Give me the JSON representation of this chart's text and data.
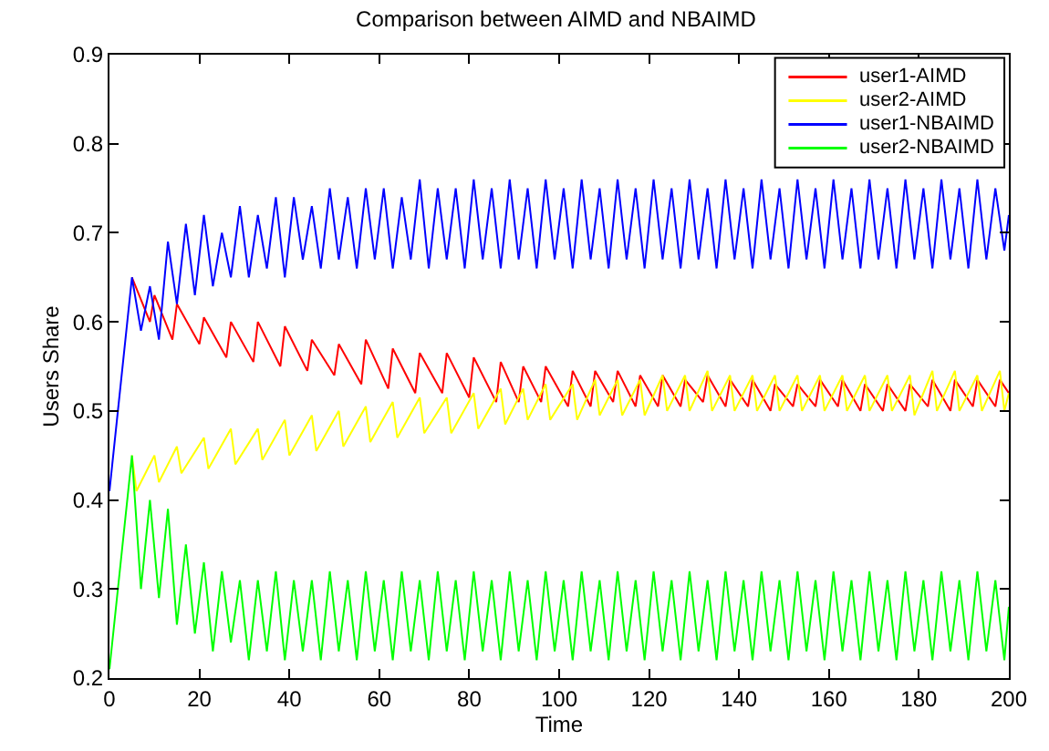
{
  "chart_data": {
    "type": "line",
    "title": "Comparison between AIMD and NBAIMD",
    "xlabel": "Time",
    "ylabel": "Users Share",
    "xlim": [
      0,
      200
    ],
    "xticks": [
      0,
      20,
      40,
      60,
      80,
      100,
      120,
      140,
      160,
      180,
      200
    ],
    "ylim": [
      0.2,
      0.9
    ],
    "yticks": [
      0.2,
      0.3,
      0.4,
      0.5,
      0.6,
      0.7,
      0.8,
      0.9
    ],
    "grid": false,
    "legend": "top right",
    "marker": "none",
    "line_style": "solid",
    "series": [
      {
        "name": "user1-AIMD",
        "color": "#ff0000",
        "x": [
          5,
          9,
          10,
          14,
          15,
          20,
          21,
          26,
          27,
          32,
          33,
          38,
          39,
          44,
          45,
          50,
          51,
          56,
          57,
          62,
          63,
          68,
          69,
          74,
          75,
          80,
          81,
          86,
          87,
          91,
          92,
          96,
          97,
          102,
          103,
          107,
          108,
          112,
          113,
          117,
          118,
          122,
          123,
          127,
          128,
          132,
          133,
          137,
          138,
          142,
          143,
          147,
          148,
          152,
          153,
          157,
          158,
          162,
          163,
          167,
          168,
          172,
          173,
          177,
          178,
          182,
          183,
          187,
          188,
          192,
          193,
          197,
          198,
          200
        ],
        "values": [
          0.65,
          0.6,
          0.63,
          0.58,
          0.62,
          0.575,
          0.605,
          0.56,
          0.6,
          0.555,
          0.6,
          0.55,
          0.595,
          0.545,
          0.58,
          0.54,
          0.575,
          0.53,
          0.58,
          0.525,
          0.57,
          0.52,
          0.565,
          0.52,
          0.565,
          0.515,
          0.56,
          0.51,
          0.555,
          0.51,
          0.55,
          0.51,
          0.55,
          0.505,
          0.545,
          0.505,
          0.545,
          0.51,
          0.545,
          0.505,
          0.54,
          0.505,
          0.54,
          0.505,
          0.535,
          0.51,
          0.54,
          0.505,
          0.535,
          0.505,
          0.535,
          0.5,
          0.53,
          0.505,
          0.53,
          0.505,
          0.535,
          0.505,
          0.535,
          0.5,
          0.53,
          0.5,
          0.53,
          0.5,
          0.53,
          0.505,
          0.535,
          0.5,
          0.535,
          0.505,
          0.535,
          0.505,
          0.535,
          0.52
        ]
      },
      {
        "name": "user2-AIMD",
        "color": "#ffff00",
        "x": [
          5,
          6,
          10,
          11,
          15,
          16,
          21,
          22,
          27,
          28,
          33,
          34,
          39,
          40,
          45,
          46,
          51,
          52,
          57,
          58,
          63,
          64,
          69,
          70,
          75,
          76,
          81,
          82,
          87,
          88,
          92,
          93,
          97,
          98,
          103,
          104,
          108,
          109,
          113,
          114,
          118,
          119,
          123,
          124,
          128,
          129,
          133,
          134,
          138,
          139,
          143,
          144,
          148,
          149,
          153,
          154,
          158,
          159,
          163,
          164,
          168,
          169,
          173,
          174,
          178,
          179,
          183,
          184,
          188,
          189,
          193,
          194,
          198,
          199,
          200
        ],
        "values": [
          0.45,
          0.41,
          0.45,
          0.42,
          0.46,
          0.43,
          0.47,
          0.435,
          0.48,
          0.44,
          0.48,
          0.445,
          0.49,
          0.45,
          0.495,
          0.455,
          0.5,
          0.46,
          0.505,
          0.465,
          0.51,
          0.47,
          0.515,
          0.475,
          0.515,
          0.475,
          0.52,
          0.48,
          0.525,
          0.485,
          0.525,
          0.49,
          0.53,
          0.49,
          0.53,
          0.49,
          0.535,
          0.495,
          0.535,
          0.495,
          0.535,
          0.495,
          0.54,
          0.5,
          0.54,
          0.5,
          0.545,
          0.5,
          0.54,
          0.5,
          0.54,
          0.5,
          0.54,
          0.5,
          0.54,
          0.5,
          0.54,
          0.5,
          0.54,
          0.5,
          0.54,
          0.5,
          0.54,
          0.5,
          0.54,
          0.495,
          0.545,
          0.5,
          0.545,
          0.5,
          0.54,
          0.5,
          0.545,
          0.5,
          0.52
        ]
      },
      {
        "name": "user1-NBAIMD",
        "color": "#0000ff",
        "x": [
          0,
          5,
          7,
          9,
          11,
          13,
          15,
          17,
          19,
          21,
          23,
          25,
          27,
          29,
          31,
          33,
          35,
          37,
          39,
          41,
          43,
          45,
          47,
          49,
          51,
          53,
          55,
          57,
          59,
          61,
          63,
          65,
          67,
          69,
          71,
          73,
          75,
          77,
          79,
          81,
          83,
          85,
          87,
          89,
          91,
          93,
          95,
          97,
          99,
          101,
          103,
          105,
          107,
          109,
          111,
          113,
          115,
          117,
          119,
          121,
          123,
          125,
          127,
          129,
          131,
          133,
          135,
          137,
          139,
          141,
          143,
          145,
          147,
          149,
          151,
          153,
          155,
          157,
          159,
          161,
          163,
          165,
          167,
          169,
          171,
          173,
          175,
          177,
          179,
          181,
          183,
          185,
          187,
          189,
          191,
          193,
          195,
          197,
          199,
          200
        ],
        "values": [
          0.41,
          0.65,
          0.59,
          0.64,
          0.58,
          0.69,
          0.62,
          0.71,
          0.63,
          0.72,
          0.64,
          0.7,
          0.65,
          0.73,
          0.65,
          0.72,
          0.66,
          0.74,
          0.65,
          0.74,
          0.67,
          0.73,
          0.66,
          0.75,
          0.67,
          0.74,
          0.66,
          0.75,
          0.67,
          0.75,
          0.66,
          0.74,
          0.67,
          0.76,
          0.66,
          0.75,
          0.67,
          0.75,
          0.66,
          0.76,
          0.67,
          0.75,
          0.66,
          0.76,
          0.67,
          0.75,
          0.66,
          0.76,
          0.67,
          0.75,
          0.66,
          0.76,
          0.67,
          0.75,
          0.66,
          0.76,
          0.67,
          0.75,
          0.66,
          0.76,
          0.67,
          0.75,
          0.66,
          0.76,
          0.67,
          0.75,
          0.66,
          0.76,
          0.67,
          0.75,
          0.66,
          0.76,
          0.67,
          0.75,
          0.66,
          0.76,
          0.67,
          0.75,
          0.66,
          0.76,
          0.67,
          0.75,
          0.66,
          0.76,
          0.67,
          0.75,
          0.66,
          0.76,
          0.67,
          0.75,
          0.66,
          0.76,
          0.67,
          0.75,
          0.66,
          0.76,
          0.67,
          0.75,
          0.68,
          0.72
        ]
      },
      {
        "name": "user2-NBAIMD",
        "color": "#00ff00",
        "x": [
          0,
          5,
          7,
          9,
          11,
          13,
          15,
          17,
          19,
          21,
          23,
          25,
          27,
          29,
          31,
          33,
          35,
          37,
          39,
          41,
          43,
          45,
          47,
          49,
          51,
          53,
          55,
          57,
          59,
          61,
          63,
          65,
          67,
          69,
          71,
          73,
          75,
          77,
          79,
          81,
          83,
          85,
          87,
          89,
          91,
          93,
          95,
          97,
          99,
          101,
          103,
          105,
          107,
          109,
          111,
          113,
          115,
          117,
          119,
          121,
          123,
          125,
          127,
          129,
          131,
          133,
          135,
          137,
          139,
          141,
          143,
          145,
          147,
          149,
          151,
          153,
          155,
          157,
          159,
          161,
          163,
          165,
          167,
          169,
          171,
          173,
          175,
          177,
          179,
          181,
          183,
          185,
          187,
          189,
          191,
          193,
          195,
          197,
          199,
          200
        ],
        "values": [
          0.21,
          0.45,
          0.3,
          0.4,
          0.29,
          0.39,
          0.26,
          0.35,
          0.25,
          0.33,
          0.23,
          0.32,
          0.24,
          0.31,
          0.22,
          0.31,
          0.23,
          0.32,
          0.22,
          0.31,
          0.23,
          0.31,
          0.22,
          0.32,
          0.23,
          0.31,
          0.22,
          0.32,
          0.23,
          0.31,
          0.22,
          0.32,
          0.23,
          0.31,
          0.22,
          0.32,
          0.23,
          0.31,
          0.22,
          0.32,
          0.23,
          0.31,
          0.22,
          0.32,
          0.23,
          0.31,
          0.22,
          0.32,
          0.23,
          0.31,
          0.22,
          0.32,
          0.23,
          0.31,
          0.22,
          0.32,
          0.23,
          0.31,
          0.22,
          0.32,
          0.23,
          0.31,
          0.22,
          0.32,
          0.23,
          0.31,
          0.22,
          0.32,
          0.23,
          0.31,
          0.22,
          0.32,
          0.23,
          0.31,
          0.22,
          0.32,
          0.23,
          0.31,
          0.22,
          0.32,
          0.23,
          0.31,
          0.22,
          0.32,
          0.23,
          0.31,
          0.22,
          0.32,
          0.23,
          0.31,
          0.22,
          0.32,
          0.23,
          0.31,
          0.22,
          0.32,
          0.23,
          0.31,
          0.22,
          0.28
        ]
      }
    ]
  }
}
